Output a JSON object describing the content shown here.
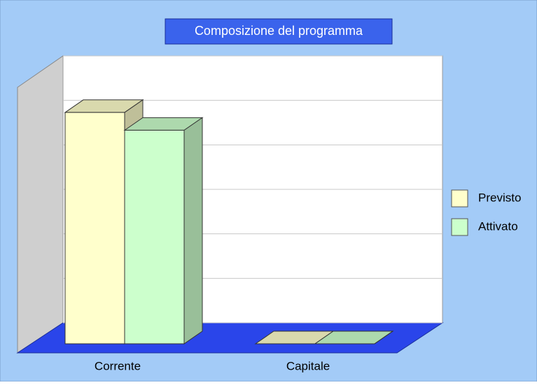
{
  "chart_data": {
    "type": "bar3d",
    "title": "Composizione del programma",
    "categories": [
      "Corrente",
      "Capitale"
    ],
    "series": [
      {
        "name": "Previsto",
        "color": "#ffffcc",
        "values": [
          5.2,
          0
        ]
      },
      {
        "name": "Attivato",
        "color": "#ccffcc",
        "values": [
          4.8,
          0
        ]
      }
    ],
    "ylim": [
      0,
      6
    ],
    "yticks": [
      0,
      1,
      2,
      3,
      4,
      5,
      6
    ],
    "grid": true,
    "legend": "right"
  }
}
